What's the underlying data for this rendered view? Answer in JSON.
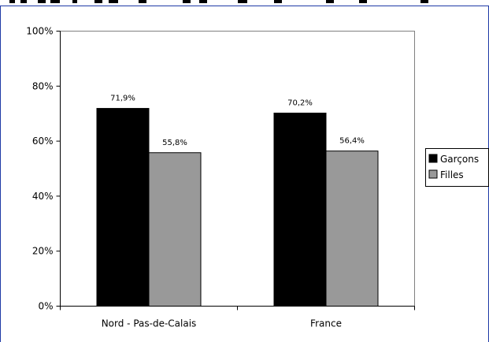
{
  "chart_data": {
    "type": "bar",
    "categories": [
      "Nord - Pas-de-Calais",
      "France"
    ],
    "series": [
      {
        "name": "Garçons",
        "values": [
          71.9,
          70.2
        ],
        "labels": [
          "71,9%",
          "70,2%"
        ],
        "color": "#000000"
      },
      {
        "name": "Filles",
        "values": [
          55.8,
          56.4
        ],
        "labels": [
          "55,8%",
          "56,4%"
        ],
        "color": "#999999"
      }
    ],
    "ylim": [
      0,
      100
    ],
    "yticks": [
      0,
      20,
      40,
      60,
      80,
      100
    ],
    "ytick_labels": [
      "0%",
      "20%",
      "40%",
      "60%",
      "80%",
      "100%"
    ],
    "grid": false,
    "legend_position": "right",
    "title": "",
    "xlabel": "",
    "ylabel": ""
  },
  "colors": {
    "frame_border": "#1f3aa6",
    "plot_border": "#808080",
    "axis": "#000000"
  }
}
